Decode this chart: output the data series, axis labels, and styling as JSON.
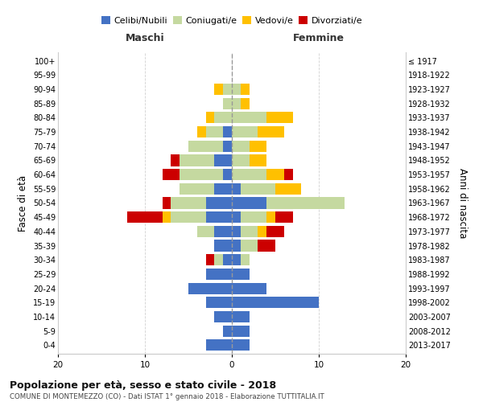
{
  "age_groups": [
    "0-4",
    "5-9",
    "10-14",
    "15-19",
    "20-24",
    "25-29",
    "30-34",
    "35-39",
    "40-44",
    "45-49",
    "50-54",
    "55-59",
    "60-64",
    "65-69",
    "70-74",
    "75-79",
    "80-84",
    "85-89",
    "90-94",
    "95-99",
    "100+"
  ],
  "birth_years": [
    "2013-2017",
    "2008-2012",
    "2003-2007",
    "1998-2002",
    "1993-1997",
    "1988-1992",
    "1983-1987",
    "1978-1982",
    "1973-1977",
    "1968-1972",
    "1963-1967",
    "1958-1962",
    "1953-1957",
    "1948-1952",
    "1943-1947",
    "1938-1942",
    "1933-1937",
    "1928-1932",
    "1923-1927",
    "1918-1922",
    "≤ 1917"
  ],
  "males": {
    "celibi": [
      3,
      1,
      2,
      3,
      5,
      3,
      1,
      2,
      2,
      3,
      3,
      2,
      1,
      2,
      1,
      1,
      0,
      0,
      0,
      0,
      0
    ],
    "coniugati": [
      0,
      0,
      0,
      0,
      0,
      0,
      1,
      0,
      2,
      4,
      4,
      4,
      5,
      4,
      4,
      2,
      2,
      1,
      1,
      0,
      0
    ],
    "vedovi": [
      0,
      0,
      0,
      0,
      0,
      0,
      0,
      0,
      0,
      1,
      0,
      0,
      0,
      0,
      0,
      1,
      1,
      0,
      1,
      0,
      0
    ],
    "divorziati": [
      0,
      0,
      0,
      0,
      0,
      0,
      1,
      0,
      0,
      4,
      1,
      0,
      2,
      1,
      0,
      0,
      0,
      0,
      0,
      0,
      0
    ]
  },
  "females": {
    "nubili": [
      2,
      2,
      2,
      10,
      4,
      2,
      1,
      1,
      1,
      1,
      4,
      1,
      0,
      0,
      0,
      0,
      0,
      0,
      0,
      0,
      0
    ],
    "coniugate": [
      0,
      0,
      0,
      0,
      0,
      0,
      1,
      2,
      2,
      3,
      9,
      4,
      4,
      2,
      2,
      3,
      4,
      1,
      1,
      0,
      0
    ],
    "vedove": [
      0,
      0,
      0,
      0,
      0,
      0,
      0,
      0,
      1,
      1,
      0,
      3,
      2,
      2,
      2,
      3,
      3,
      1,
      1,
      0,
      0
    ],
    "divorziate": [
      0,
      0,
      0,
      0,
      0,
      0,
      0,
      2,
      2,
      2,
      0,
      0,
      1,
      0,
      0,
      0,
      0,
      0,
      0,
      0,
      0
    ]
  },
  "colors": {
    "celibi": "#4472c4",
    "coniugati": "#c5d9a0",
    "vedovi": "#ffc000",
    "divorziati": "#cc0000"
  },
  "xlim": 20,
  "title": "Popolazione per età, sesso e stato civile - 2018",
  "subtitle": "COMUNE DI MONTEMEZZO (CO) - Dati ISTAT 1° gennaio 2018 - Elaborazione TUTTITALIA.IT",
  "ylabel_left": "Fasce di età",
  "ylabel_right": "Anni di nascita",
  "xlabel_left": "Maschi",
  "xlabel_right": "Femmine",
  "bg_color": "#ffffff",
  "plot_bg_color": "#ffffff",
  "grid_color": "#cccccc"
}
